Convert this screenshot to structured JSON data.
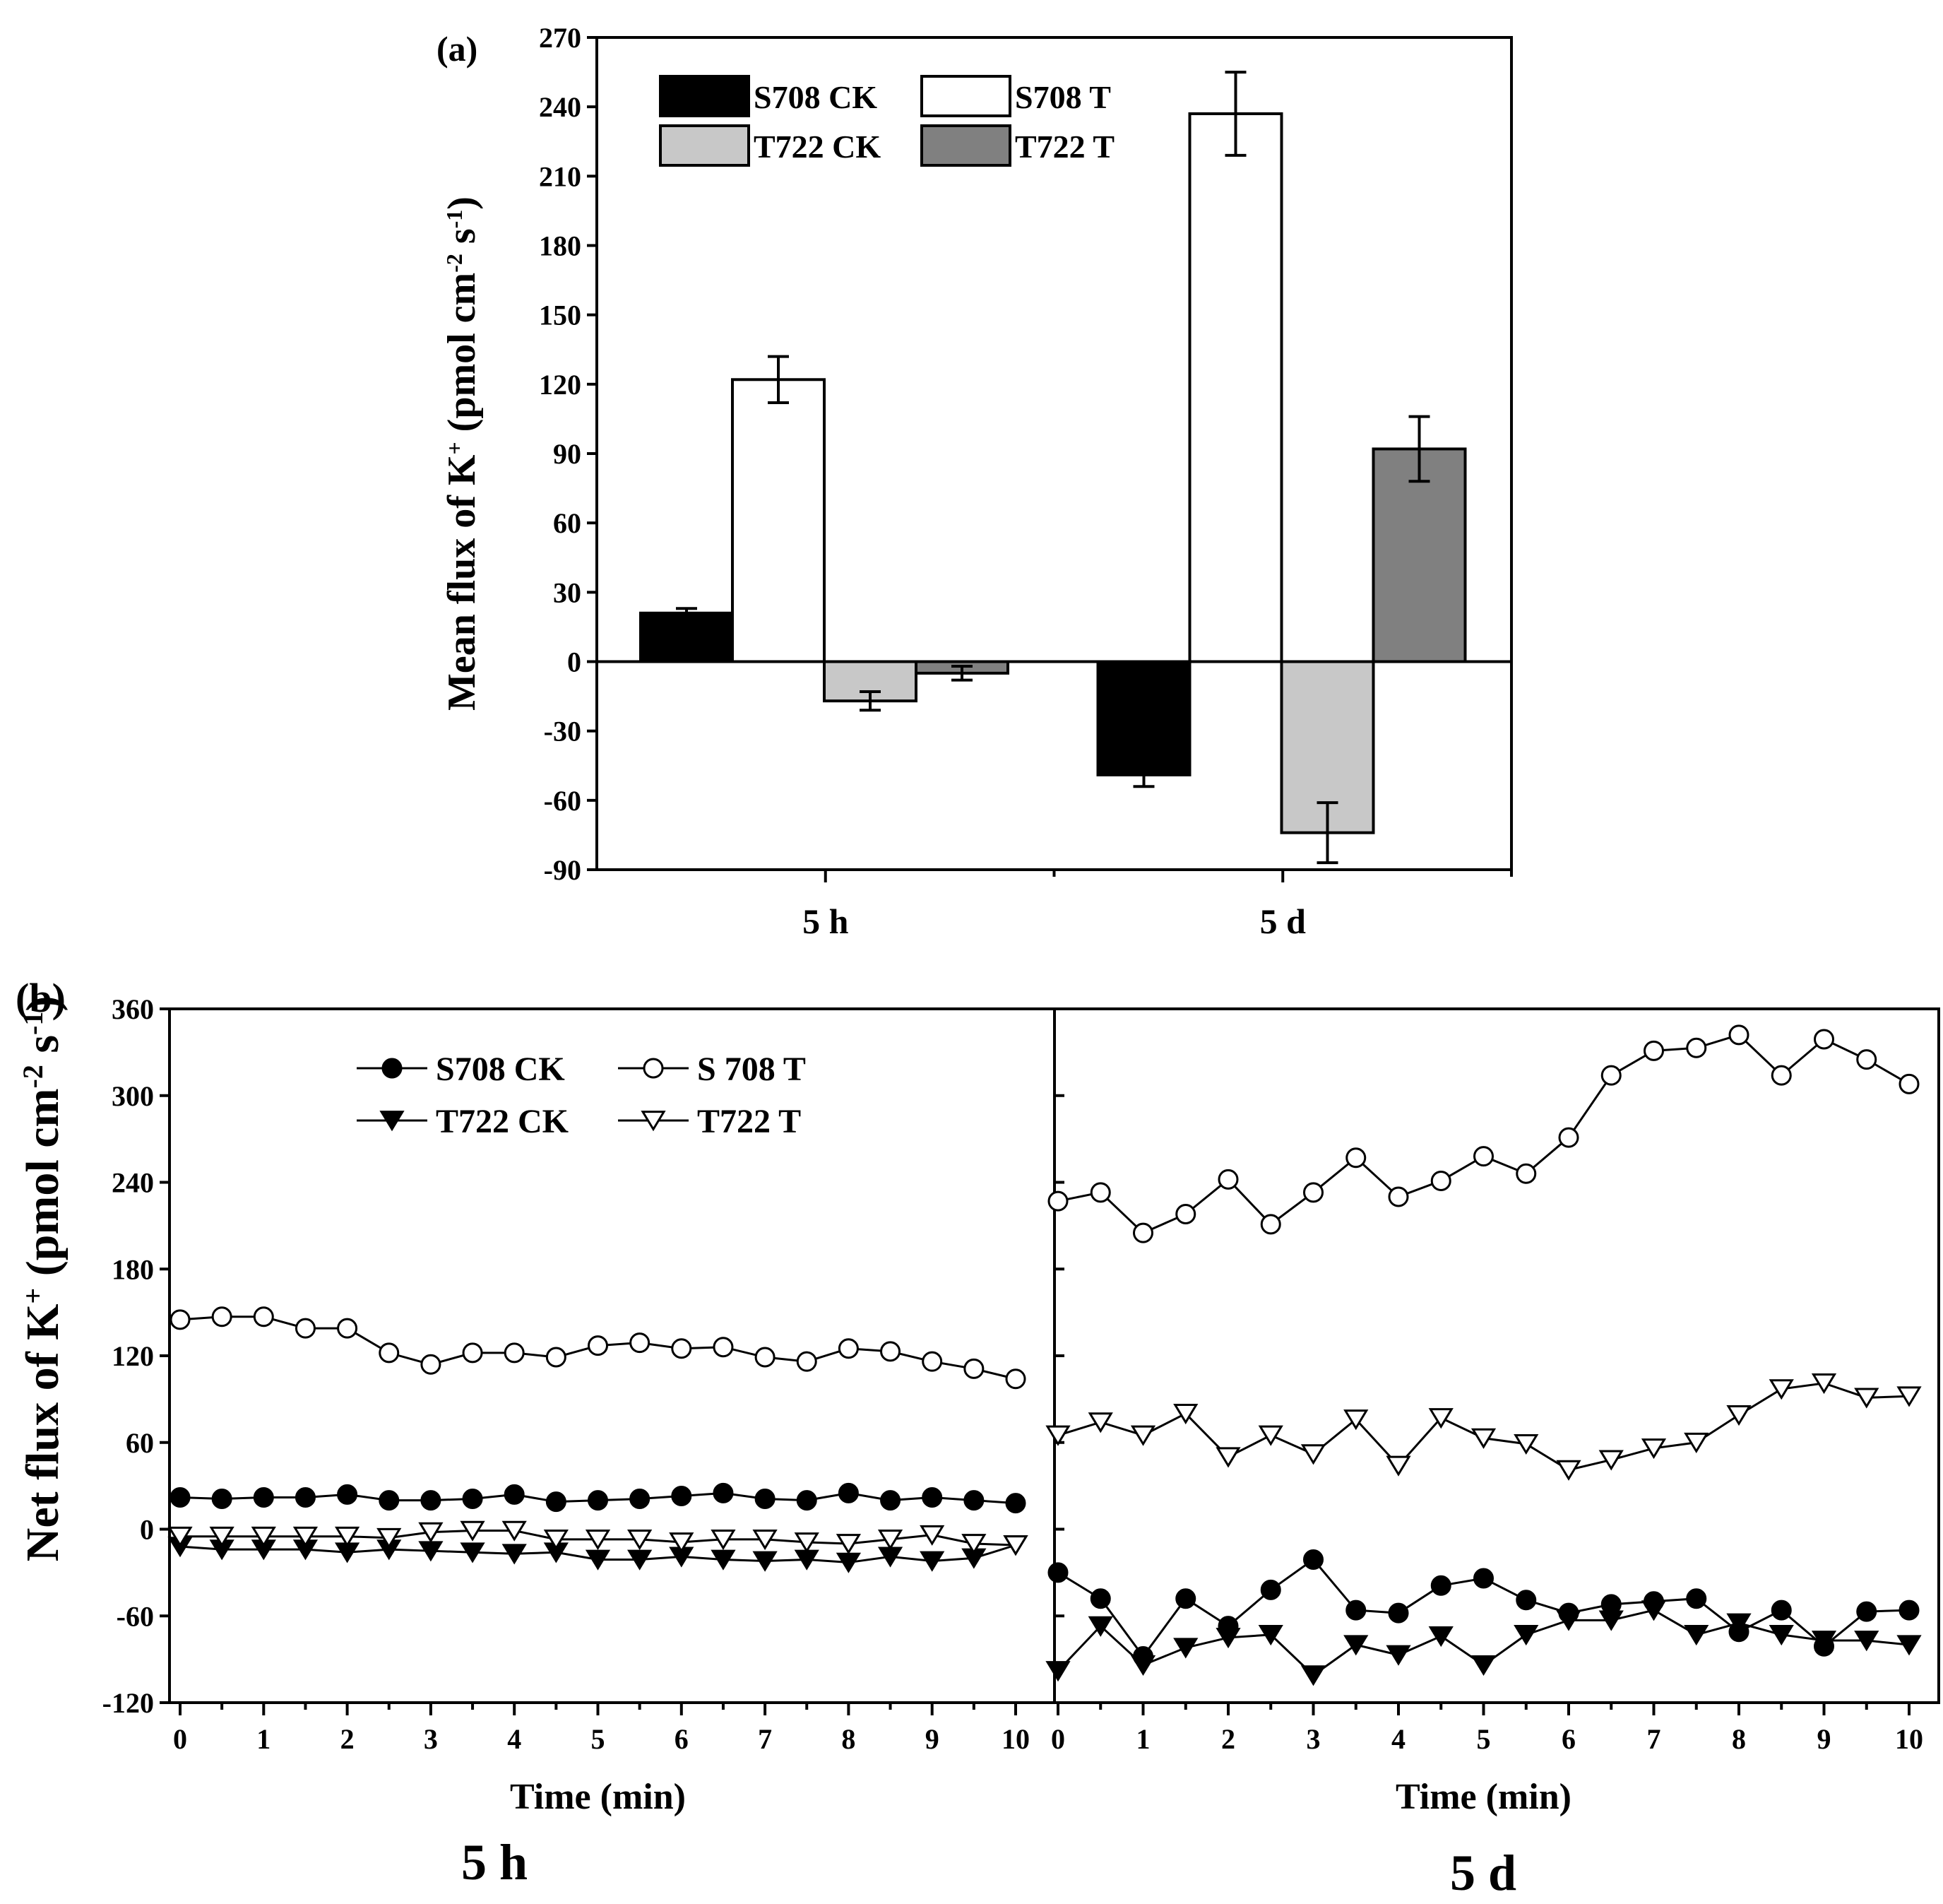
{
  "panel_a_label": "(a)",
  "panel_b_label": "(b)",
  "colors": {
    "S708 CK": "#000000",
    "S708 T": "#ffffff",
    "T722 CK": "#c8c8c8",
    "T722 T": "#808080"
  },
  "chart_data": [
    {
      "id": "a",
      "type": "bar",
      "ylabel": "Mean flux of K+ (pmol cm-2 s-1)",
      "ylim": [
        -90,
        270
      ],
      "yticks": [
        -90,
        -60,
        -30,
        0,
        30,
        60,
        90,
        120,
        150,
        180,
        210,
        240,
        270
      ],
      "categories": [
        "5 h",
        "5 d"
      ],
      "series": [
        {
          "name": "S708 CK",
          "values": [
            21,
            -49
          ],
          "errors": [
            2,
            5
          ]
        },
        {
          "name": "S708 T",
          "values": [
            122,
            237
          ],
          "errors": [
            10,
            18
          ]
        },
        {
          "name": "T722 CK",
          "values": [
            -17,
            -74
          ],
          "errors": [
            4,
            13
          ]
        },
        {
          "name": "T722 T",
          "values": [
            -5,
            92
          ],
          "errors": [
            3,
            14
          ]
        }
      ],
      "legend": "top-left"
    },
    {
      "id": "b",
      "type": "line",
      "ylabel": "Net flux of K+ (pmol cm-2 s-1)",
      "xlabel": "Time (min)",
      "ylim": [
        -120,
        360
      ],
      "yticks": [
        -120,
        -60,
        0,
        60,
        120,
        180,
        240,
        300,
        360
      ],
      "xlim": [
        0,
        10
      ],
      "xticks": [
        0,
        1,
        2,
        3,
        4,
        5,
        6,
        7,
        8,
        9,
        10
      ],
      "x": [
        0,
        0.5,
        1,
        1.5,
        2,
        2.5,
        3,
        3.5,
        4,
        4.5,
        5,
        5.5,
        6,
        6.5,
        7,
        7.5,
        8,
        8.5,
        9,
        9.5,
        10
      ],
      "legend": "top-left",
      "legend_labels": [
        "S708 CK",
        "S 708 T",
        "T722 CK",
        "T722 T"
      ],
      "subplots": [
        {
          "title": "5 h",
          "series": [
            {
              "name": "S708 CK",
              "values": [
                22,
                21,
                22,
                22,
                24,
                20,
                20,
                21,
                24,
                19,
                20,
                21,
                23,
                25,
                21,
                20,
                25,
                20,
                22,
                20,
                18
              ]
            },
            {
              "name": "S 708 T",
              "values": [
                145,
                147,
                147,
                139,
                139,
                122,
                114,
                122,
                122,
                119,
                127,
                129,
                125,
                126,
                119,
                116,
                125,
                123,
                116,
                111,
                104
              ]
            },
            {
              "name": "T722 CK",
              "values": [
                -12,
                -14,
                -14,
                -14,
                -16,
                -14,
                -15,
                -16,
                -17,
                -16,
                -21,
                -21,
                -19,
                -21,
                -22,
                -21,
                -23,
                -19,
                -22,
                -20,
                -11
              ]
            },
            {
              "name": "T722 T",
              "values": [
                -5,
                -5,
                -5,
                -5,
                -5,
                -6,
                -2,
                -1,
                -1,
                -7,
                -7,
                -7,
                -9,
                -7,
                -7,
                -9,
                -10,
                -7,
                -4,
                -10,
                -11
              ]
            }
          ]
        },
        {
          "title": "5 d",
          "series": [
            {
              "name": "S708 CK",
              "values": [
                -30,
                -48,
                -88,
                -48,
                -67,
                -42,
                -21,
                -56,
                -58,
                -39,
                -34,
                -49,
                -58,
                -52,
                -50,
                -48,
                -71,
                -56,
                -81,
                -57,
                -56
              ]
            },
            {
              "name": "S 708 T",
              "values": [
                227,
                233,
                205,
                218,
                242,
                211,
                233,
                257,
                230,
                241,
                258,
                246,
                271,
                314,
                331,
                333,
                342,
                314,
                339,
                325,
                308
              ]
            },
            {
              "name": "T722 CK",
              "values": [
                -98,
                -67,
                -94,
                -82,
                -75,
                -73,
                -101,
                -80,
                -87,
                -74,
                -94,
                -73,
                -63,
                -63,
                -56,
                -73,
                -65,
                -73,
                -77,
                -77,
                -80
              ]
            },
            {
              "name": "T722 T",
              "values": [
                65,
                74,
                65,
                80,
                50,
                65,
                52,
                76,
                44,
                77,
                63,
                59,
                41,
                48,
                56,
                60,
                79,
                97,
                101,
                91,
                92
              ]
            }
          ]
        }
      ]
    }
  ]
}
